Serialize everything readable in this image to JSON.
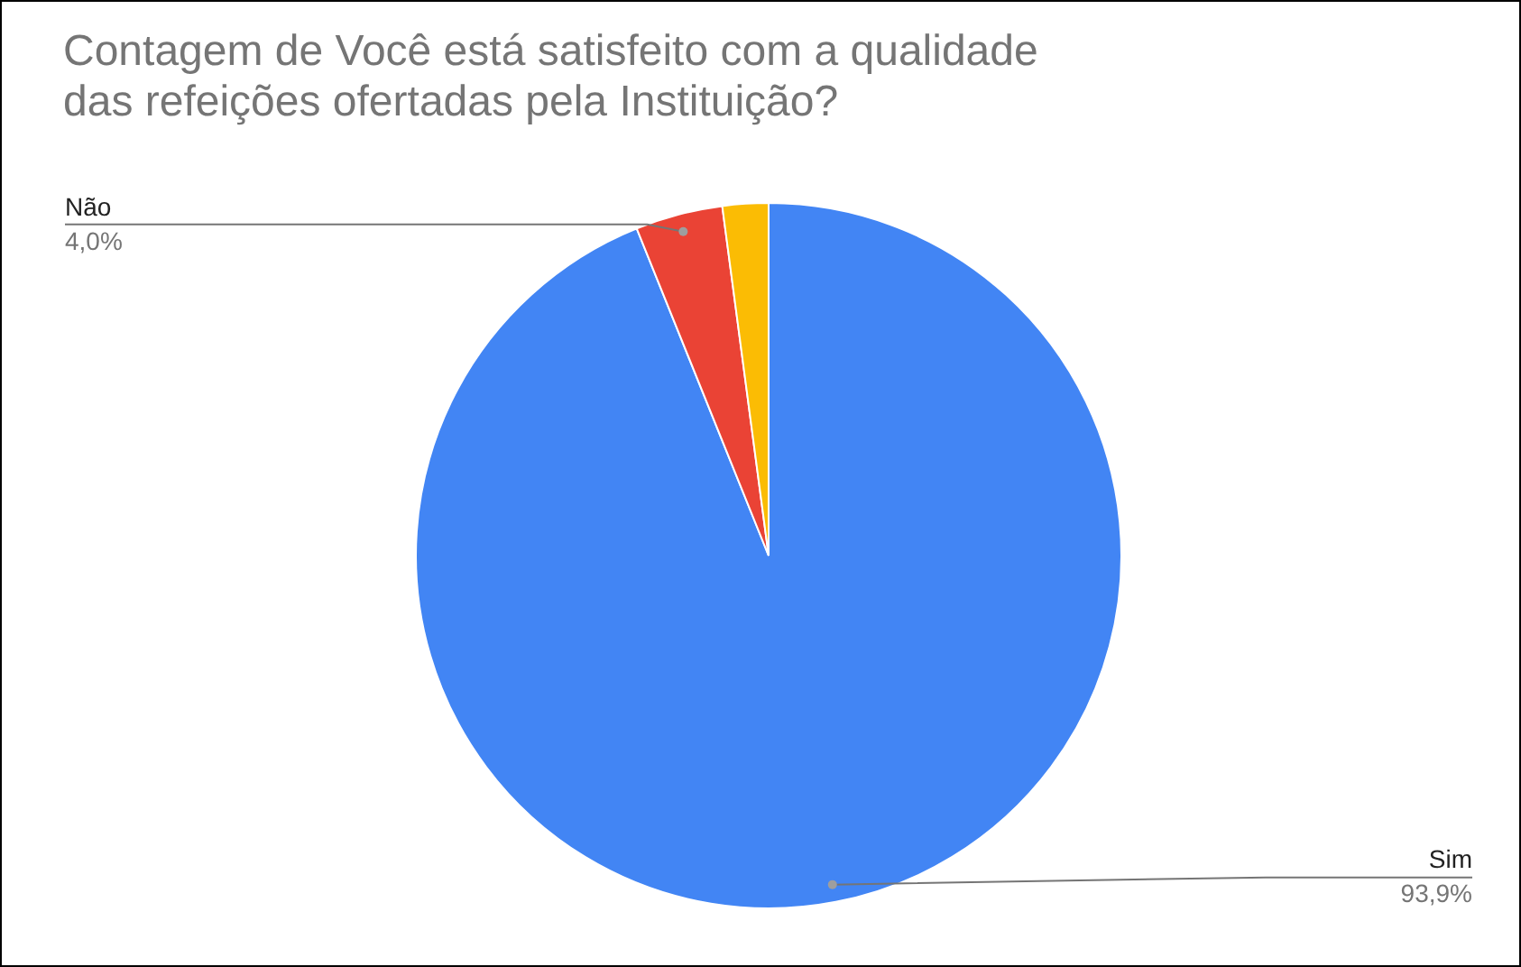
{
  "chart_data": {
    "type": "pie",
    "title": "Contagem de Você está satisfeito com a qualidade das refeições ofertadas pela Instituição?",
    "categories": [
      "Sim",
      "Não",
      null
    ],
    "values": [
      93.9,
      4.0,
      2.1
    ],
    "colors": [
      "#4285f4",
      "#ea4335",
      "#fbbc04"
    ],
    "value_labels": [
      "93,9%",
      "4,0%",
      null
    ],
    "legend": false
  }
}
